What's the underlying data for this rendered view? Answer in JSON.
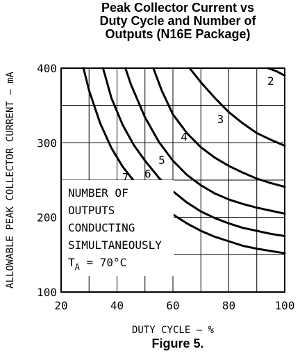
{
  "title": {
    "line1": "Peak Collector Current vs",
    "line2": "Duty Cycle and Number of",
    "line3": "Outputs (N16E Package)"
  },
  "caption": "Figure 5.",
  "annotation": {
    "line1": "NUMBER OF",
    "line2": "OUTPUTS",
    "line3": "CONDUCTING",
    "line4": "SIMULTANEOUSLY",
    "ta_main": "T",
    "ta_sub": "A",
    "ta_rest": " = 70°C"
  },
  "chart_data": {
    "type": "line",
    "xlabel": "DUTY CYCLE – %",
    "ylabel": "ALLOWABLE PEAK COLLECTOR CURRENT – mA",
    "xlim": [
      20,
      100
    ],
    "ylim": [
      100,
      400
    ],
    "xticks": [
      20,
      40,
      60,
      80,
      100
    ],
    "yticks": [
      100,
      200,
      300,
      400
    ],
    "grid": true,
    "series": [
      {
        "name": "2",
        "x": [
          94,
          97,
          100
        ],
        "y": [
          400,
          396,
          390
        ]
      },
      {
        "name": "3",
        "x": [
          66,
          70,
          75,
          80,
          85,
          90,
          95,
          100
        ],
        "y": [
          400,
          381,
          360,
          341,
          326,
          313,
          304,
          296
        ]
      },
      {
        "name": "4",
        "x": [
          53,
          56,
          60,
          65,
          70,
          75,
          80,
          85,
          90,
          95,
          100
        ],
        "y": [
          400,
          370,
          338,
          313,
          294,
          280,
          269,
          260,
          252,
          246,
          241
        ]
      },
      {
        "name": "5",
        "x": [
          43,
          45,
          50,
          55,
          60,
          65,
          70,
          75,
          80,
          85,
          90,
          95,
          100
        ],
        "y": [
          400,
          378,
          334,
          301,
          276,
          257,
          243,
          232,
          224,
          218,
          213,
          209,
          205
        ]
      },
      {
        "name": "6",
        "x": [
          35,
          38,
          42,
          46,
          50,
          55,
          60,
          65,
          70,
          75,
          80,
          85,
          90,
          95,
          100
        ],
        "y": [
          400,
          360,
          324,
          297,
          276,
          253,
          235,
          220,
          208,
          199,
          192,
          186,
          182,
          178,
          175
        ]
      },
      {
        "name": "7",
        "x": [
          28,
          30,
          34,
          38,
          42,
          46,
          50,
          55,
          60,
          65,
          70,
          75,
          80,
          85,
          90,
          95,
          100
        ],
        "y": [
          400,
          370,
          326,
          293,
          268,
          249,
          234,
          218,
          204,
          192,
          182,
          174,
          168,
          162,
          158,
          155,
          152
        ]
      }
    ],
    "series_labels": [
      {
        "text": "2",
        "x": 95,
        "y": 383
      },
      {
        "text": "3",
        "x": 77,
        "y": 332
      },
      {
        "text": "4",
        "x": 64,
        "y": 308
      },
      {
        "text": "5",
        "x": 56,
        "y": 277
      },
      {
        "text": "6",
        "x": 51,
        "y": 259
      },
      {
        "text": "7",
        "x": 43,
        "y": 254
      }
    ]
  }
}
